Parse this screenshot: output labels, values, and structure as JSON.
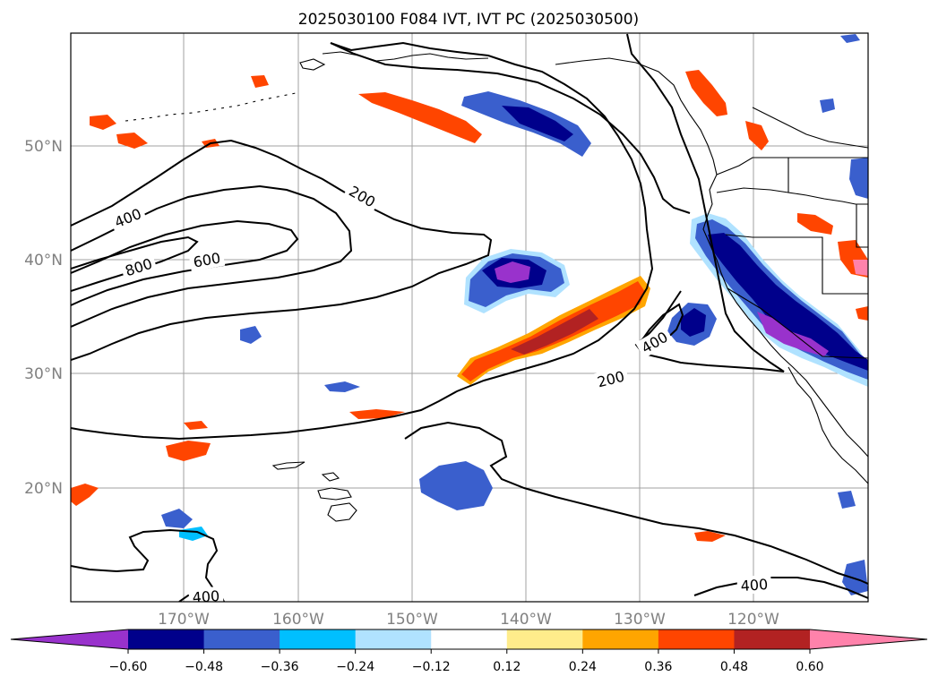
{
  "title": "2025030100 F084 IVT, IVT PC (2025030500)",
  "map": {
    "lat_labels": [
      "50°N",
      "40°N",
      "30°N",
      "20°N"
    ],
    "lon_labels": [
      "170°W",
      "160°W",
      "150°W",
      "140°W",
      "130°W",
      "120°W"
    ],
    "contour_labels": [
      "400",
      "800",
      "600",
      "200",
      "400",
      "200",
      "400",
      "400"
    ],
    "contour_color": "#000000",
    "gridlines": true,
    "coastlines": true
  },
  "colorbar": {
    "tick_labels": [
      "−0.60",
      "−0.48",
      "−0.36",
      "−0.24",
      "−0.12",
      "0.12",
      "0.24",
      "0.36",
      "0.48",
      "0.60"
    ],
    "colors": [
      "#9932cc",
      "#00008b",
      "#3a5fcd",
      "#00bfff",
      "#b0e2ff",
      "#ffffff",
      "#ffec8b",
      "#ffa500",
      "#ff4500",
      "#b22222",
      "#ff82ab"
    ],
    "extend": "both"
  }
}
